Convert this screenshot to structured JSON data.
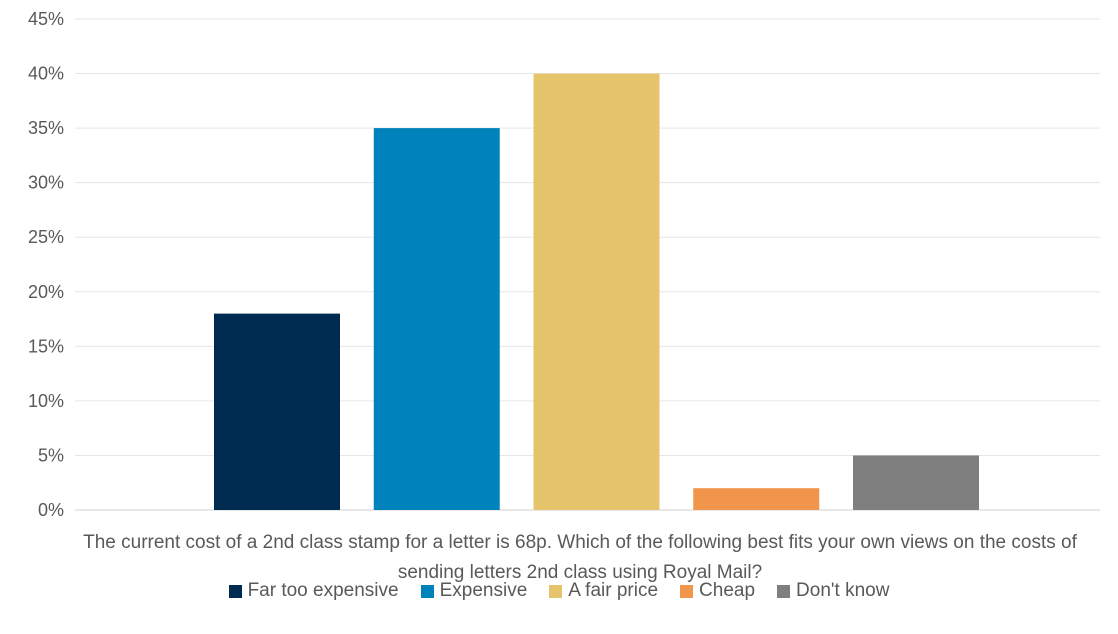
{
  "chart_data": {
    "type": "bar",
    "categories": [
      "Far too expensive",
      "Expensive",
      "A fair price",
      "Cheap",
      "Don't know"
    ],
    "values": [
      18,
      35,
      40,
      2,
      5
    ],
    "colors": [
      "#002b50",
      "#0082bc",
      "#e6c46c",
      "#f0954a",
      "#7f7f7f"
    ],
    "title": "",
    "xlabel": "The current cost of a 2nd class stamp for a letter is 68p. Which of the following best fits your own views on the costs of sending letters 2nd class using Royal Mail?",
    "ylabel": "",
    "ylim": [
      0,
      45
    ],
    "ytick_values": [
      0,
      5,
      10,
      15,
      20,
      25,
      30,
      35,
      40,
      45
    ],
    "ytick_labels": [
      "0%",
      "5%",
      "10%",
      "15%",
      "20%",
      "25%",
      "30%",
      "35%",
      "40%",
      "45%"
    ],
    "grid": true,
    "legend_position": "bottom",
    "legend": [
      "Far too expensive",
      "Expensive",
      "A fair price",
      "Cheap",
      "Don't know"
    ]
  }
}
